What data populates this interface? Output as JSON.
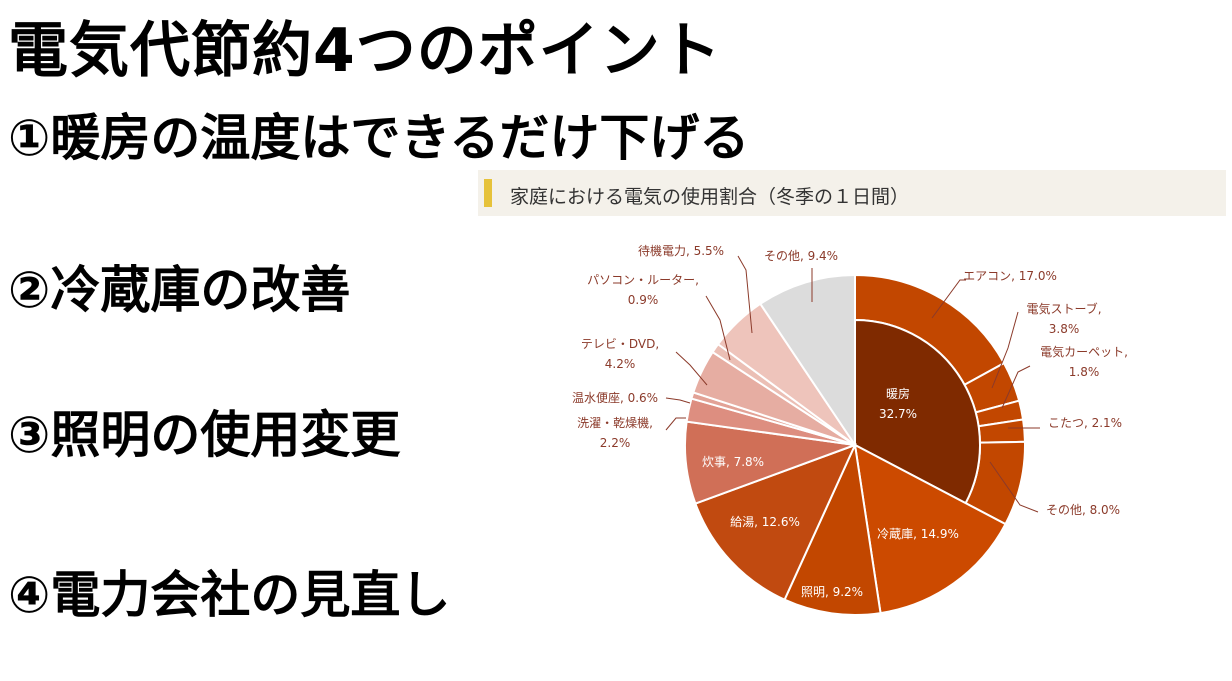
{
  "main_title": "電気代節約4つのポイント",
  "points": [
    "①暖房の温度はできるだけ下げる",
    "②冷蔵庫の改善",
    "③照明の使用変更",
    "④電力会社の見直し"
  ],
  "chart_data": {
    "type": "pie",
    "title": "家庭における電気の使用割合（冬季の１日間）",
    "slices": [
      {
        "label": "暖房",
        "value": 32.7,
        "color": "#7f2a00",
        "lines": [
          "暖房",
          "32.7%"
        ]
      },
      {
        "label": "冷蔵庫",
        "value": 14.9,
        "color": "#cc4a00",
        "lines": [
          "冷蔵庫, 14.9%"
        ]
      },
      {
        "label": "照明",
        "value": 9.2,
        "color": "#c24700",
        "lines": [
          "照明, 9.2%"
        ]
      },
      {
        "label": "給湯",
        "value": 12.6,
        "color": "#c14a10",
        "lines": [
          "給湯, 12.6%"
        ]
      },
      {
        "label": "炊事",
        "value": 7.8,
        "color": "#d06f57",
        "lines": [
          "炊事, 7.8%"
        ]
      },
      {
        "label": "洗濯・乾燥機",
        "value": 2.2,
        "color": "#dd8e80",
        "lines": [
          "洗濯・乾燥機,",
          "2.2%"
        ]
      },
      {
        "label": "温水便座",
        "value": 0.6,
        "color": "#e2a296",
        "lines": [
          "温水便座, 0.6%"
        ]
      },
      {
        "label": "テレビ・DVD",
        "value": 4.2,
        "color": "#e6ada2",
        "lines": [
          "テレビ・DVD,",
          "4.2%"
        ]
      },
      {
        "label": "パソコン・ルーター",
        "value": 0.9,
        "color": "#ebbfb5",
        "lines": [
          "パソコン・ルーター,",
          "0.9%"
        ]
      },
      {
        "label": "待機電力",
        "value": 5.5,
        "color": "#eec4bb",
        "lines": [
          "待機電力, 5.5%"
        ]
      },
      {
        "label": "その他",
        "value": 9.4,
        "color": "#dcdcdc",
        "lines": [
          "その他, 9.4%"
        ]
      }
    ],
    "breakdown_of": "暖房",
    "breakdown": [
      {
        "label": "エアコン",
        "value": 17.0,
        "lines": [
          "エアコン, 17.0%"
        ]
      },
      {
        "label": "電気ストーブ",
        "value": 3.8,
        "lines": [
          "電気ストーブ,",
          "3.8%"
        ]
      },
      {
        "label": "電気カーペット",
        "value": 1.8,
        "lines": [
          "電気カーペット,",
          "1.8%"
        ]
      },
      {
        "label": "こたつ",
        "value": 2.1,
        "lines": [
          "こたつ, 2.1%"
        ]
      },
      {
        "label": "その他",
        "value": 8.0,
        "lines": [
          "その他, 8.0%"
        ]
      }
    ],
    "outer_color": "#c24700",
    "label_color": "#8b3a2a"
  }
}
